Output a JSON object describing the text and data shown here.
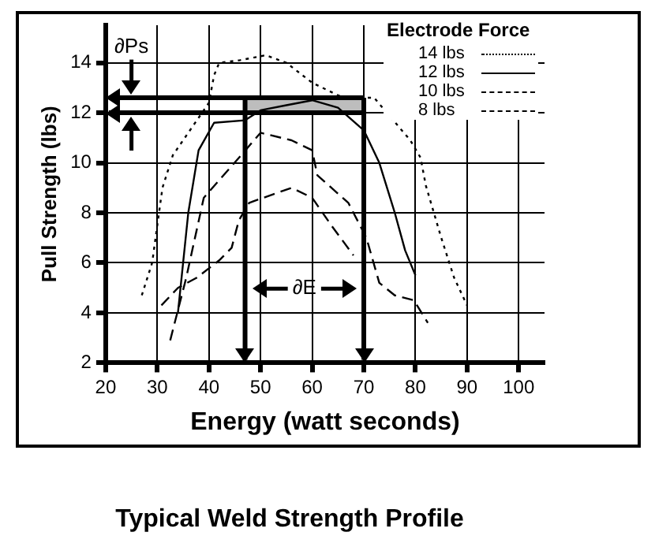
{
  "chart_data": {
    "type": "line",
    "title": "Typical Weld Strength Profile",
    "xlabel": "Energy (watt seconds)",
    "ylabel": "Pull Strength (lbs)",
    "legend_title": "Electrode Force",
    "xlim": [
      20,
      105
    ],
    "xticks": [
      20,
      30,
      40,
      50,
      60,
      70,
      80,
      90,
      100
    ],
    "ylim": [
      2,
      15.5
    ],
    "yticks": [
      2,
      4,
      6,
      8,
      10,
      12,
      14
    ],
    "grid": true,
    "legend": "top right",
    "marker": "none",
    "series": [
      {
        "name": "14 lbs",
        "color": "#000000",
        "line_style": "dotted",
        "x": [
          27,
          29,
          31,
          33,
          36,
          40,
          41,
          42,
          46,
          51,
          55,
          60,
          66,
          72,
          79,
          81,
          82,
          85,
          87.5,
          90
        ],
        "values": [
          4.7,
          6,
          9,
          10.3,
          11.2,
          12.4,
          13.5,
          14,
          14.1,
          14.3,
          14,
          13.2,
          12.6,
          12.6,
          10.9,
          10.2,
          9.1,
          7,
          5.4,
          4.3
        ]
      },
      {
        "name": "12 lbs",
        "color": "#000000",
        "line_style": "solid",
        "x": [
          34,
          36,
          38,
          41,
          47,
          50,
          55,
          60,
          65,
          70,
          73,
          76,
          78,
          80
        ],
        "values": [
          4,
          8,
          10.5,
          11.6,
          11.7,
          12.1,
          12.3,
          12.5,
          12.2,
          11.3,
          10,
          8,
          6.5,
          5.5
        ]
      },
      {
        "name": "10 lbs",
        "color": "#000000",
        "line_style": "dashed",
        "x": [
          32.5,
          35.6,
          39,
          45.8,
          50,
          56,
          60,
          61,
          67,
          70.5,
          73,
          76,
          79.7,
          82.4
        ],
        "values": [
          2.9,
          5.4,
          8.6,
          10.2,
          11.2,
          10.9,
          10.5,
          9.5,
          8.4,
          7,
          5.2,
          4.7,
          4.5,
          3.6
        ]
      },
      {
        "name": "8 lbs",
        "color": "#000000",
        "line_style": "dashed",
        "x": [
          30.8,
          34,
          37.6,
          42,
          44.4,
          45.8,
          47.8,
          56,
          60,
          63.7,
          68
        ],
        "values": [
          4.3,
          5,
          5.4,
          6.1,
          6.6,
          7.7,
          8.4,
          9,
          8.6,
          7.5,
          6.3
        ]
      }
    ],
    "ref_lines": [
      {
        "axis": "y",
        "value": 12.6
      },
      {
        "axis": "y",
        "value": 12
      },
      {
        "axis": "x",
        "value": 47
      },
      {
        "axis": "x",
        "value": 70
      }
    ],
    "bands": [
      {
        "axis": "y",
        "from": 12,
        "to": 12.6,
        "color": "#bdbdbd"
      }
    ],
    "annotations": [
      "∂Ps",
      "∂E"
    ]
  }
}
